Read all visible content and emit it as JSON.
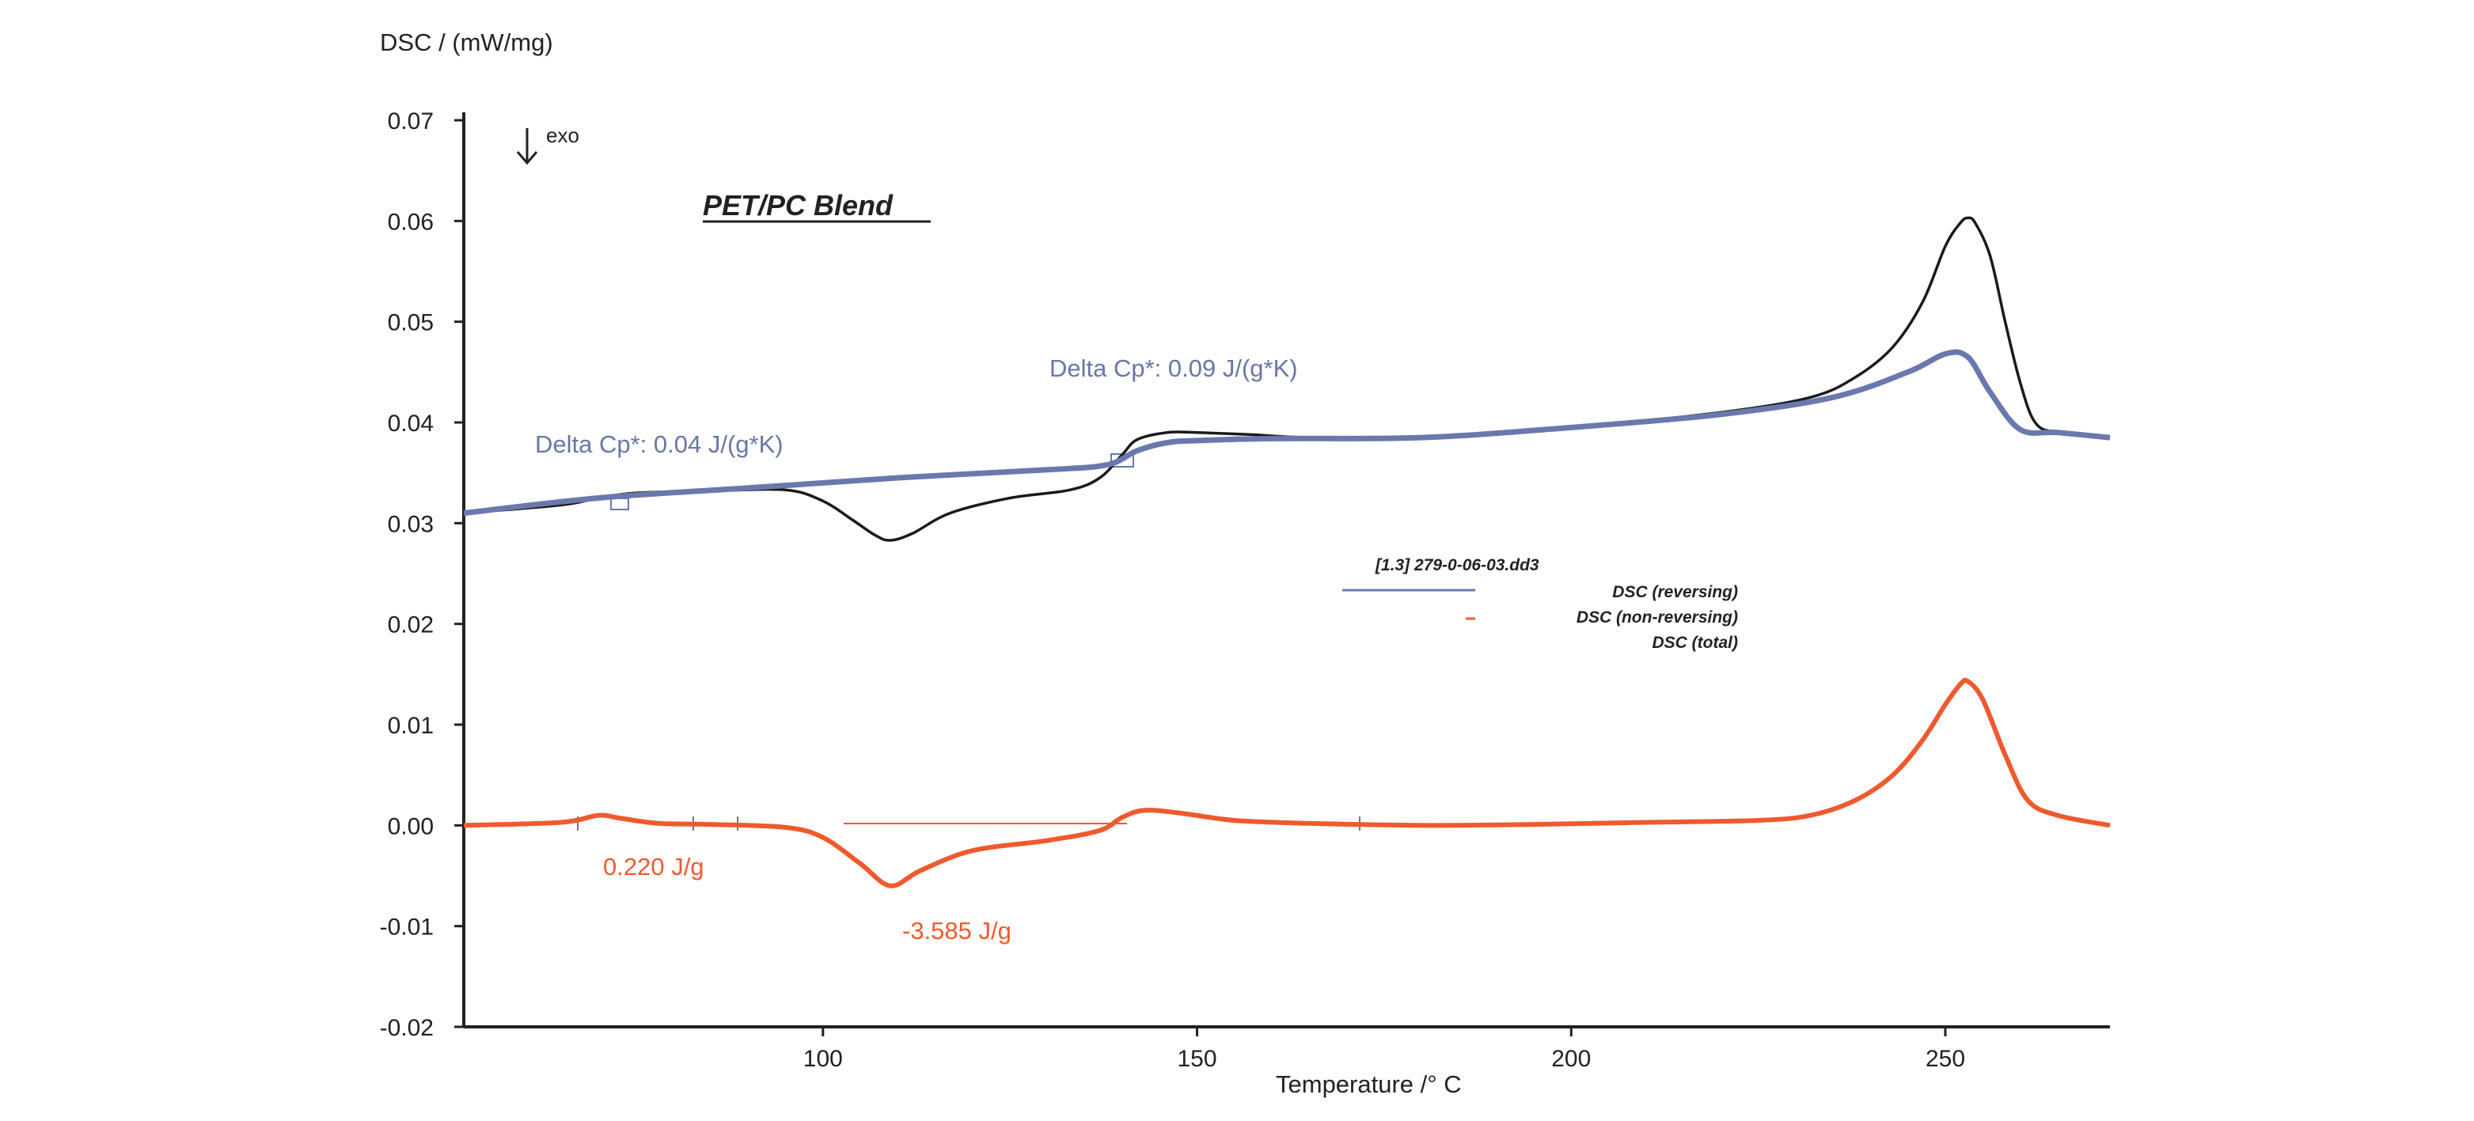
{
  "chart_data": {
    "type": "line",
    "title": "PET/PC Blend",
    "xlabel": "Temperature /° C",
    "ylabel": "DSC / (mW/mg)",
    "xlim": [
      52,
      272
    ],
    "ylim": [
      -0.02,
      0.07
    ],
    "x_ticks": [
      100,
      150,
      200,
      250
    ],
    "y_ticks": [
      "0.07",
      "0.06",
      "0.05",
      "0.04",
      "0.03",
      "0.02",
      "0.01",
      "0.00",
      "-0.01",
      "-0.02"
    ],
    "exo_label": "exo",
    "legend": {
      "file": "[1.3] 279-0-06-03.dd3",
      "entries": [
        "DSC (reversing)",
        "DSC (non-reversing)",
        "DSC (total)"
      ]
    },
    "annotations": [
      {
        "text": "Delta Cp*:  0.09 J/(g*K)",
        "color": "#6a76a6"
      },
      {
        "text": "Delta Cp*:  0.04 J/(g*K)",
        "color": "#6a76a6"
      },
      {
        "text": "0.220 J/g",
        "color": "#ee5a2e"
      },
      {
        "text": "-3.585 J/g",
        "color": "#ee5a2e"
      }
    ],
    "series": [
      {
        "name": "DSC (reversing)",
        "color": "#6b78ad",
        "x": [
          52,
          70,
          90,
          110,
          130,
          138,
          142,
          146,
          150,
          160,
          180,
          200,
          220,
          235,
          245,
          250,
          253,
          256,
          260,
          265,
          272
        ],
        "y": [
          0.031,
          0.0325,
          0.0335,
          0.0345,
          0.0353,
          0.0358,
          0.0372,
          0.038,
          0.0382,
          0.0384,
          0.0385,
          0.0395,
          0.0408,
          0.0425,
          0.045,
          0.0468,
          0.0465,
          0.043,
          0.0393,
          0.039,
          0.0385
        ]
      },
      {
        "name": "DSC (non-reversing)",
        "color": "#ee5a2e",
        "x": [
          52,
          65,
          70,
          73,
          78,
          85,
          95,
          100,
          105,
          109,
          113,
          120,
          130,
          137,
          140,
          143,
          148,
          155,
          165,
          180,
          195,
          210,
          225,
          232,
          238,
          243,
          247,
          250,
          252,
          253,
          255,
          258,
          261,
          265,
          272
        ],
        "y": [
          0.0,
          0.0003,
          0.001,
          0.0007,
          0.0002,
          0.0001,
          -0.0002,
          -0.0012,
          -0.0038,
          -0.006,
          -0.0045,
          -0.0025,
          -0.0015,
          -0.0005,
          0.0008,
          0.0015,
          0.0012,
          0.0005,
          0.0002,
          0.0,
          0.0001,
          0.0003,
          0.0005,
          0.001,
          0.0025,
          0.005,
          0.0085,
          0.012,
          0.014,
          0.0143,
          0.0125,
          0.007,
          0.0025,
          0.001,
          0.0
        ]
      },
      {
        "name": "DSC (total)",
        "color": "#1a1a1a",
        "x": [
          52,
          65,
          70,
          75,
          85,
          95,
          100,
          104,
          107,
          109,
          112,
          117,
          125,
          133,
          137,
          140,
          142,
          146,
          150,
          157,
          165,
          180,
          200,
          220,
          232,
          238,
          243,
          247,
          250,
          252,
          253,
          254,
          256,
          258,
          260,
          262,
          265,
          272
        ],
        "y": [
          0.031,
          0.0318,
          0.0325,
          0.033,
          0.0332,
          0.0333,
          0.0322,
          0.0303,
          0.0288,
          0.0283,
          0.029,
          0.031,
          0.0325,
          0.0333,
          0.0345,
          0.0368,
          0.0383,
          0.039,
          0.039,
          0.0388,
          0.0385,
          0.0385,
          0.0395,
          0.041,
          0.0425,
          0.0445,
          0.0475,
          0.052,
          0.0575,
          0.0598,
          0.0603,
          0.0598,
          0.0565,
          0.05,
          0.044,
          0.04,
          0.039,
          0.0385
        ]
      }
    ]
  }
}
